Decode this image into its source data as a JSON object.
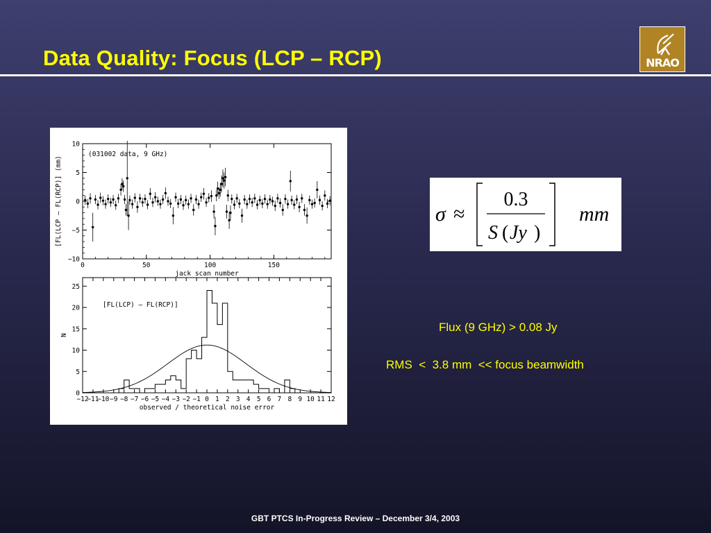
{
  "slide": {
    "title": "Data Quality:  Focus (LCP – RCP)",
    "title_color": "#ffff00",
    "rule_color": "#ffffff",
    "footer": "GBT PTCS In-Progress  Review – December 3/4, 2003"
  },
  "logo": {
    "text": "NRAO",
    "icon": "radio-telescope-logo-icon",
    "background_color": "#b08424"
  },
  "formula": {
    "sigma": "σ",
    "approx": "≈",
    "numerator": "0.3",
    "denominator_S": "S",
    "denominator_paren_open": "(",
    "denominator_Jy": "Jy",
    "denominator_paren_close": ")",
    "unit": "mm"
  },
  "notes": {
    "flux": "Flux (9 GHz) > 0.08 Jy",
    "rms": "RMS  <  3.8 mm  << focus beamwidth"
  },
  "chart_data": [
    {
      "type": "scatter",
      "annotation": "(031002 data, 9 GHz)",
      "xlabel": "jack scan number",
      "ylabel": "[FL(LCP – FL(RCP)]  (mm)",
      "xlim": [
        0,
        195
      ],
      "ylim": [
        -10,
        10
      ],
      "xticks": [
        0,
        50,
        100,
        150
      ],
      "yticks": [
        -10,
        -5,
        0,
        5,
        10
      ],
      "error_bars": true,
      "points": [
        [
          2,
          0.2,
          0.8
        ],
        [
          4,
          -0.4,
          0.8
        ],
        [
          6,
          0.5,
          0.9
        ],
        [
          8,
          -4.5,
          2.5
        ],
        [
          10,
          0.3,
          0.8
        ],
        [
          12,
          -0.6,
          0.8
        ],
        [
          14,
          0.6,
          0.9
        ],
        [
          16,
          0.1,
          0.8
        ],
        [
          18,
          -0.5,
          0.8
        ],
        [
          20,
          0.4,
          0.8
        ],
        [
          22,
          -0.2,
          0.8
        ],
        [
          24,
          0.3,
          0.8
        ],
        [
          26,
          -0.7,
          0.8
        ],
        [
          28,
          0.5,
          0.8
        ],
        [
          30,
          2.0,
          1.0
        ],
        [
          31,
          3.0,
          1.0
        ],
        [
          32,
          2.6,
          1.0
        ],
        [
          33,
          0.3,
          0.8
        ],
        [
          34,
          -1.5,
          1.0
        ],
        [
          35,
          4.0,
          6.5
        ],
        [
          36,
          -2.5,
          2.5
        ],
        [
          37,
          0.2,
          0.8
        ],
        [
          39,
          -0.5,
          0.8
        ],
        [
          41,
          0.6,
          0.8
        ],
        [
          43,
          -1.0,
          1.0
        ],
        [
          45,
          0.5,
          0.8
        ],
        [
          47,
          -0.2,
          0.8
        ],
        [
          49,
          0.4,
          0.8
        ],
        [
          51,
          -0.6,
          0.8
        ],
        [
          53,
          1.3,
          1.0
        ],
        [
          55,
          -0.2,
          0.8
        ],
        [
          57,
          0.7,
          0.9
        ],
        [
          59,
          0.0,
          0.8
        ],
        [
          61,
          -0.5,
          0.8
        ],
        [
          63,
          0.3,
          0.8
        ],
        [
          65,
          1.4,
          1.0
        ],
        [
          67,
          0.0,
          0.8
        ],
        [
          69,
          -0.4,
          0.8
        ],
        [
          71,
          -2.5,
          1.5
        ],
        [
          73,
          0.7,
          0.8
        ],
        [
          75,
          -0.4,
          0.8
        ],
        [
          77,
          0.3,
          0.8
        ],
        [
          79,
          -0.7,
          0.8
        ],
        [
          81,
          0.2,
          0.8
        ],
        [
          83,
          -0.5,
          0.8
        ],
        [
          85,
          0.5,
          0.8
        ],
        [
          87,
          -1.5,
          1.0
        ],
        [
          89,
          0.3,
          0.8
        ],
        [
          91,
          -0.5,
          0.8
        ],
        [
          93,
          0.7,
          0.8
        ],
        [
          95,
          1.3,
          1.0
        ],
        [
          97,
          -0.2,
          0.8
        ],
        [
          99,
          0.6,
          0.8
        ],
        [
          101,
          0.9,
          1.0
        ],
        [
          103,
          -1.8,
          1.2
        ],
        [
          104,
          -4.3,
          1.6
        ],
        [
          105,
          1.0,
          1.0
        ],
        [
          106,
          2.2,
          1.2
        ],
        [
          107,
          1.4,
          1.0
        ],
        [
          108,
          2.0,
          1.2
        ],
        [
          109,
          3.0,
          1.5
        ],
        [
          110,
          4.0,
          1.5
        ],
        [
          111,
          3.6,
          1.4
        ],
        [
          112,
          4.2,
          1.6
        ],
        [
          113,
          -1.8,
          1.2
        ],
        [
          114,
          1.0,
          1.0
        ],
        [
          115,
          -3.3,
          1.5
        ],
        [
          116,
          -2.0,
          1.3
        ],
        [
          117,
          0.4,
          0.8
        ],
        [
          119,
          -0.6,
          0.8
        ],
        [
          121,
          0.5,
          0.8
        ],
        [
          123,
          -0.4,
          0.8
        ],
        [
          125,
          -2.5,
          1.2
        ],
        [
          127,
          0.3,
          0.8
        ],
        [
          129,
          -0.5,
          0.8
        ],
        [
          131,
          0.4,
          0.8
        ],
        [
          133,
          -0.2,
          0.8
        ],
        [
          135,
          0.5,
          0.8
        ],
        [
          137,
          -0.6,
          0.8
        ],
        [
          139,
          0.2,
          0.8
        ],
        [
          141,
          -0.4,
          0.8
        ],
        [
          143,
          0.4,
          0.8
        ],
        [
          145,
          -0.5,
          0.8
        ],
        [
          147,
          0.3,
          0.8
        ],
        [
          149,
          0.0,
          0.8
        ],
        [
          151,
          -0.8,
          0.9
        ],
        [
          153,
          0.5,
          0.8
        ],
        [
          155,
          -0.3,
          0.8
        ],
        [
          157,
          -1.5,
          1.0
        ],
        [
          159,
          0.4,
          0.8
        ],
        [
          161,
          -0.5,
          0.8
        ],
        [
          163,
          3.5,
          1.8
        ],
        [
          164,
          0.2,
          0.8
        ],
        [
          166,
          -0.6,
          0.8
        ],
        [
          168,
          0.3,
          0.8
        ],
        [
          170,
          -1.0,
          0.9
        ],
        [
          172,
          0.5,
          0.8
        ],
        [
          174,
          -1.5,
          1.0
        ],
        [
          176,
          -2.5,
          1.4
        ],
        [
          178,
          0.2,
          0.8
        ],
        [
          180,
          -0.5,
          0.8
        ],
        [
          182,
          -0.3,
          0.8
        ],
        [
          184,
          2.0,
          1.5
        ],
        [
          186,
          0.2,
          0.8
        ],
        [
          188,
          -0.8,
          0.8
        ],
        [
          190,
          1.0,
          0.9
        ],
        [
          192,
          -0.4,
          0.8
        ],
        [
          194,
          0.1,
          0.8
        ]
      ]
    },
    {
      "type": "bar",
      "subtype": "histogram",
      "annotation": "[FL(LCP) – FL(RCP)]",
      "xlabel": "observed / theoretical noise error",
      "ylabel": "N",
      "xlim": [
        -12,
        12
      ],
      "ylim": [
        0,
        27
      ],
      "xticks": [
        -12,
        -11,
        -10,
        -9,
        -8,
        -7,
        -6,
        -5,
        -4,
        -3,
        -2,
        -1,
        0,
        1,
        2,
        3,
        4,
        5,
        6,
        7,
        8,
        9,
        10,
        11,
        12
      ],
      "yticks": [
        0,
        5,
        10,
        15,
        20,
        25
      ],
      "bin_width": 0.5,
      "bins": [
        [
          -12.0,
          0
        ],
        [
          -11.5,
          0
        ],
        [
          -11.0,
          0
        ],
        [
          -10.5,
          0
        ],
        [
          -10.0,
          0
        ],
        [
          -9.5,
          0
        ],
        [
          -9.0,
          0
        ],
        [
          -8.5,
          1
        ],
        [
          -8.0,
          3
        ],
        [
          -7.5,
          1
        ],
        [
          -7.0,
          1
        ],
        [
          -6.5,
          0
        ],
        [
          -6.0,
          1
        ],
        [
          -5.5,
          1
        ],
        [
          -5.0,
          2
        ],
        [
          -4.5,
          2
        ],
        [
          -4.0,
          3
        ],
        [
          -3.5,
          4
        ],
        [
          -3.0,
          3
        ],
        [
          -2.5,
          1
        ],
        [
          -2.0,
          8
        ],
        [
          -1.5,
          10
        ],
        [
          -1.0,
          8
        ],
        [
          -0.5,
          13
        ],
        [
          0.0,
          24
        ],
        [
          0.5,
          21
        ],
        [
          1.0,
          16
        ],
        [
          1.5,
          21
        ],
        [
          2.0,
          5
        ],
        [
          2.5,
          3
        ],
        [
          3.0,
          3
        ],
        [
          3.5,
          3
        ],
        [
          4.0,
          3
        ],
        [
          4.5,
          2
        ],
        [
          5.0,
          1
        ],
        [
          5.5,
          1
        ],
        [
          6.0,
          0
        ],
        [
          6.5,
          1
        ],
        [
          7.0,
          0
        ],
        [
          7.5,
          3
        ],
        [
          8.0,
          1
        ],
        [
          8.5,
          0
        ],
        [
          9.0,
          0
        ],
        [
          9.5,
          0
        ],
        [
          10.0,
          0
        ],
        [
          10.5,
          0
        ],
        [
          11.0,
          0
        ],
        [
          11.5,
          0
        ]
      ],
      "gaussian": {
        "amplitude": 11.2,
        "mean": 0.0,
        "sigma": 3.8
      }
    }
  ]
}
